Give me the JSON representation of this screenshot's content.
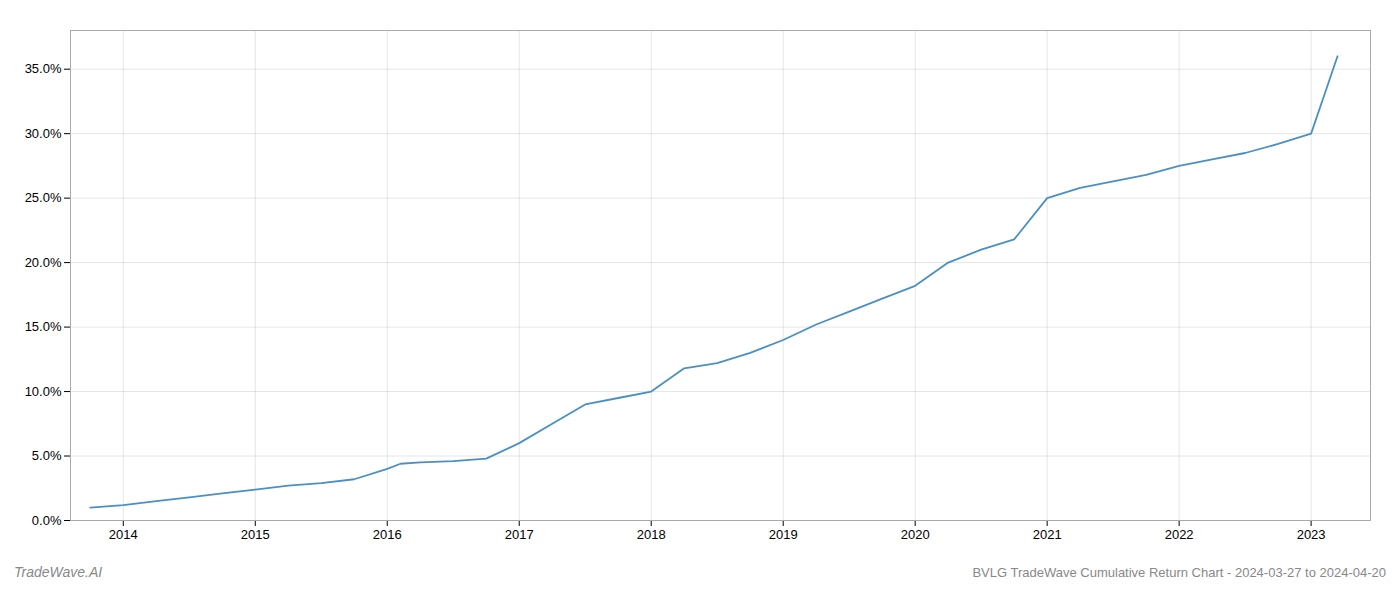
{
  "chart_data": {
    "type": "line",
    "title": "BVLG TradeWave Cumulative Return Chart - 2024-03-27 to 2024-04-20",
    "annotations": [
      "TradeWave.AI"
    ],
    "color": "#4a90c4",
    "grid": true,
    "x": [
      2013.75,
      2014.0,
      2014.25,
      2014.5,
      2014.75,
      2015.0,
      2015.25,
      2015.5,
      2015.75,
      2016.0,
      2016.1,
      2016.25,
      2016.5,
      2016.75,
      2017.0,
      2017.25,
      2017.5,
      2017.75,
      2018.0,
      2018.25,
      2018.5,
      2018.75,
      2019.0,
      2019.25,
      2019.5,
      2019.75,
      2020.0,
      2020.25,
      2020.5,
      2020.75,
      2021.0,
      2021.25,
      2021.5,
      2021.75,
      2022.0,
      2022.25,
      2022.5,
      2022.75,
      2023.0,
      2023.1,
      2023.2
    ],
    "values": [
      0.01,
      0.012,
      0.015,
      0.018,
      0.021,
      0.024,
      0.027,
      0.029,
      0.032,
      0.04,
      0.044,
      0.045,
      0.046,
      0.048,
      0.06,
      0.075,
      0.09,
      0.095,
      0.1,
      0.118,
      0.122,
      0.13,
      0.14,
      0.152,
      0.162,
      0.172,
      0.182,
      0.2,
      0.21,
      0.218,
      0.25,
      0.258,
      0.263,
      0.268,
      0.275,
      0.28,
      0.285,
      0.292,
      0.3,
      0.33,
      0.36
    ],
    "xlim": [
      2013.6,
      2023.45
    ],
    "ylim": [
      0.0,
      0.38
    ],
    "xticks": [
      2014,
      2015,
      2016,
      2017,
      2018,
      2019,
      2020,
      2021,
      2022,
      2023
    ],
    "yticks": [
      {
        "value": 0.0,
        "label": "0.0%"
      },
      {
        "value": 0.05,
        "label": "5.0%"
      },
      {
        "value": 0.1,
        "label": "10.0%"
      },
      {
        "value": 0.15,
        "label": "15.0%"
      },
      {
        "value": 0.2,
        "label": "20.0%"
      },
      {
        "value": 0.25,
        "label": "25.0%"
      },
      {
        "value": 0.3,
        "label": "30.0%"
      },
      {
        "value": 0.35,
        "label": "35.0%"
      }
    ]
  }
}
